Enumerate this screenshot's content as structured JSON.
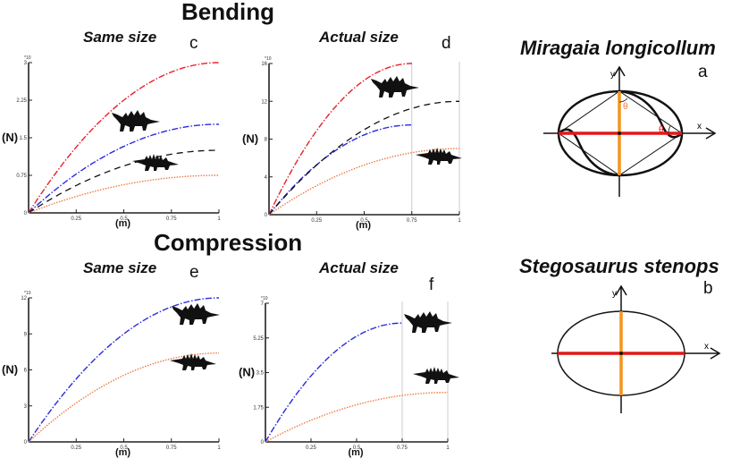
{
  "headings": {
    "bending": "Bending",
    "compression": "Compression"
  },
  "species": {
    "a": {
      "name": "Miragaia longicollum",
      "letter": "a",
      "theta": "θ",
      "x_axis": "x",
      "y_axis": "y"
    },
    "b": {
      "name": "Stegosaurus stenops",
      "letter": "b",
      "x_axis": "x",
      "y_axis": "y"
    }
  },
  "colors": {
    "red": "#e8202a",
    "blue": "#2a2ae0",
    "black": "#111111",
    "orange": "#f07a40",
    "axis_orange": "#f5941d",
    "axis_red": "#e01818"
  },
  "chart_data": [
    {
      "id": "c",
      "type": "line",
      "title": "Same size",
      "letter": "c",
      "xlabel": "(m)",
      "ylabel": "(N)",
      "exponent": "*10",
      "xlim": [
        0,
        1
      ],
      "ylim": [
        0,
        3
      ],
      "xticks": [
        "0.25",
        "0.5",
        "0.75",
        "1"
      ],
      "yticks": [
        "0",
        "0.75",
        "1.5",
        "2.25",
        "3"
      ],
      "ytick_values": [
        0,
        0.75,
        1.5,
        2.25,
        3
      ],
      "series": [
        {
          "name": "red",
          "style": "dashdot",
          "x_end": 1,
          "peak": 3.0
        },
        {
          "name": "blue",
          "style": "dashdot",
          "x_end": 1,
          "peak": 1.77
        },
        {
          "name": "black",
          "style": "dashed",
          "x_end": 1,
          "peak": 1.25
        },
        {
          "name": "orange",
          "style": "dotted",
          "x_end": 1,
          "peak": 0.75
        }
      ]
    },
    {
      "id": "d",
      "type": "line",
      "title": "Actual size",
      "letter": "d",
      "xlabel": "(m)",
      "ylabel": "(N)",
      "exponent": "*10",
      "xlim": [
        0,
        1
      ],
      "ylim": [
        0,
        16
      ],
      "xticks": [
        "0.25",
        "0.5",
        "0.75",
        "1"
      ],
      "yticks": [
        "0",
        "4",
        "8",
        "12",
        "16"
      ],
      "ytick_values": [
        0,
        4,
        8,
        12,
        16
      ],
      "vlines": [
        0.75,
        1
      ],
      "series": [
        {
          "name": "red",
          "style": "dashdot",
          "x_end": 0.75,
          "peak": 16
        },
        {
          "name": "blue",
          "style": "dashdot",
          "x_end": 0.75,
          "peak": 9.5
        },
        {
          "name": "black",
          "style": "dashed",
          "x_end": 1,
          "peak": 12
        },
        {
          "name": "orange",
          "style": "dotted",
          "x_end": 1,
          "peak": 7
        }
      ]
    },
    {
      "id": "e",
      "type": "line",
      "title": "Same size",
      "letter": "e",
      "xlabel": "(m)",
      "ylabel": "(N)",
      "exponent": "*10",
      "xlim": [
        0,
        1
      ],
      "ylim": [
        0,
        12
      ],
      "xticks": [
        "0.25",
        "0.5",
        "0.75",
        "1"
      ],
      "yticks": [
        "0",
        "3",
        "6",
        "9",
        "12"
      ],
      "ytick_values": [
        0,
        3,
        6,
        9,
        12
      ],
      "series": [
        {
          "name": "blue",
          "style": "dashdot",
          "x_end": 1,
          "peak": 12
        },
        {
          "name": "orange",
          "style": "dotted",
          "x_end": 1,
          "peak": 7.4
        }
      ]
    },
    {
      "id": "f",
      "type": "line",
      "title": "Actual size",
      "letter": "f",
      "xlabel": "(m)",
      "ylabel": "(N)",
      "exponent": "*10",
      "xlim": [
        0,
        1
      ],
      "ylim": [
        0,
        7
      ],
      "xticks": [
        "0.25",
        "0.5",
        "0.75",
        "1"
      ],
      "yticks": [
        "0",
        "1.75",
        "3.5",
        "5.25",
        "7"
      ],
      "ytick_values": [
        0,
        1.75,
        3.5,
        5.25,
        7
      ],
      "vlines": [
        0.75,
        1
      ],
      "series": [
        {
          "name": "blue",
          "style": "dashdot",
          "x_end": 0.75,
          "peak": 6
        },
        {
          "name": "orange",
          "style": "dotted",
          "x_end": 1,
          "peak": 2.5
        }
      ]
    }
  ]
}
